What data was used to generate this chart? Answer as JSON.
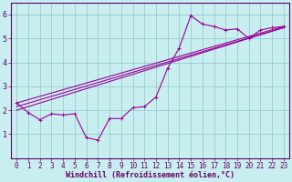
{
  "xlabel": "Windchill (Refroidissement éolien,°C)",
  "bg_color": "#c8eef0",
  "grid_color": "#99cccc",
  "line_color": "#990099",
  "xlim": [
    -0.5,
    23.5
  ],
  "ylim": [
    0,
    6.5
  ],
  "xticks": [
    0,
    1,
    2,
    3,
    4,
    5,
    6,
    7,
    8,
    9,
    10,
    11,
    12,
    13,
    14,
    15,
    16,
    17,
    18,
    19,
    20,
    21,
    22,
    23
  ],
  "yticks": [
    1,
    2,
    3,
    4,
    5,
    6
  ],
  "line1_x": [
    0,
    1,
    2,
    3,
    4,
    5,
    6,
    7,
    8,
    9,
    10,
    11,
    12,
    13,
    14,
    15,
    16,
    17,
    18,
    19,
    20,
    21,
    22,
    23
  ],
  "line1_y": [
    2.3,
    1.9,
    1.6,
    1.85,
    1.8,
    1.85,
    0.85,
    0.75,
    1.65,
    1.65,
    2.1,
    2.15,
    2.55,
    3.75,
    4.6,
    5.95,
    5.6,
    5.5,
    5.35,
    5.4,
    5.0,
    5.35,
    5.45,
    5.5
  ],
  "line2_x": [
    0,
    23
  ],
  "line2_y": [
    2.3,
    5.5
  ],
  "line3_x": [
    0,
    23
  ],
  "line3_y": [
    2.15,
    5.45
  ],
  "line4_x": [
    0,
    23
  ],
  "line4_y": [
    2.0,
    5.45
  ],
  "lw": 0.8,
  "marker_size": 3,
  "xlabel_fontsize": 6,
  "tick_fontsize": 5.5
}
